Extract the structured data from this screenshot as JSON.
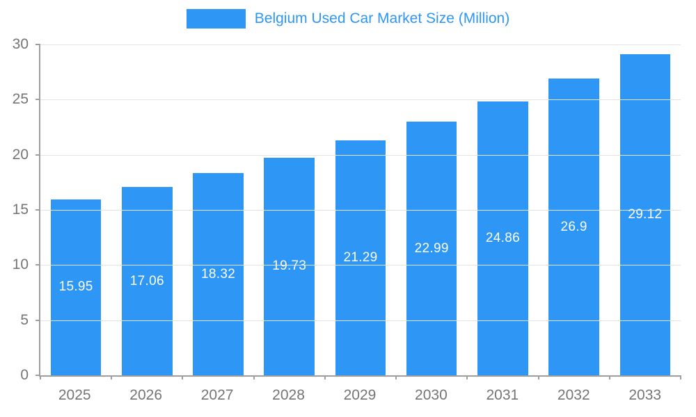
{
  "chart_data": {
    "type": "bar",
    "title": "Belgium Used Car Market Size (Million)",
    "categories": [
      "2025",
      "2026",
      "2027",
      "2028",
      "2029",
      "2030",
      "2031",
      "2032",
      "2033"
    ],
    "values": [
      15.95,
      17.06,
      18.32,
      19.73,
      21.29,
      22.99,
      24.86,
      26.9,
      29.12
    ],
    "xlabel": "",
    "ylabel": "",
    "ylim": [
      0,
      30
    ],
    "yticks": [
      0,
      5,
      10,
      15,
      20,
      25,
      30
    ],
    "grid": true,
    "legend_position": "top",
    "value_labels_inside_bars": true,
    "colors": {
      "bar": "#2E96F5",
      "title_text": "#2E96F5",
      "value_label": "#FFFFFF",
      "axis_line": "#9E9E9E",
      "tick_label": "#757575",
      "gridline": "#E3E3E3",
      "background": "#FFFFFF"
    }
  }
}
